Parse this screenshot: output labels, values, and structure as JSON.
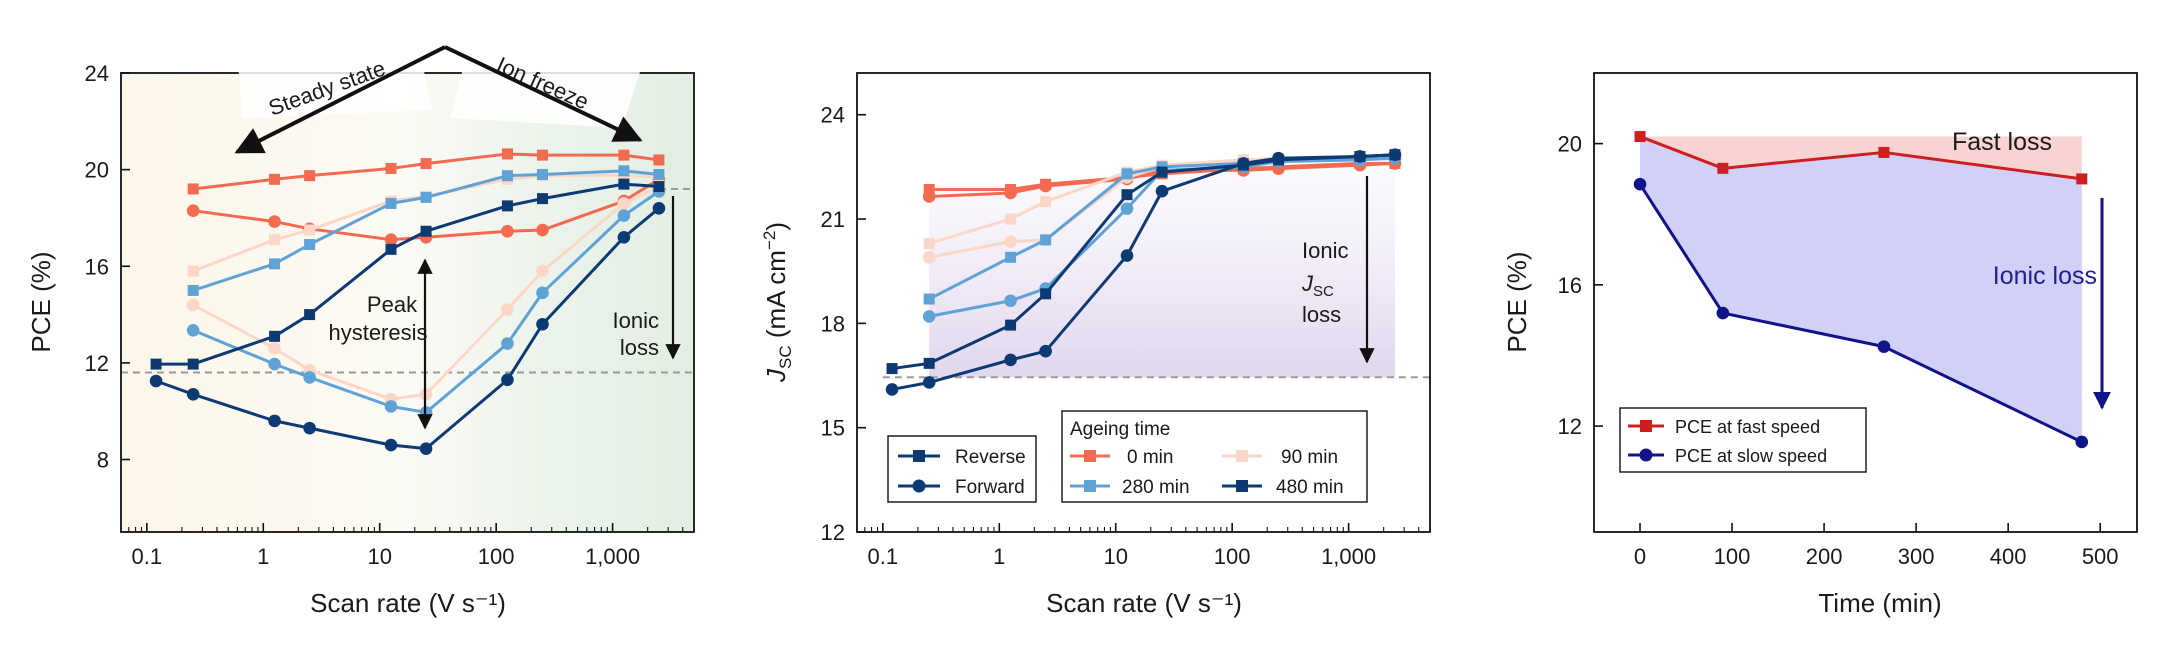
{
  "chart_data": [
    {
      "type": "line",
      "xscale": "log",
      "xlabel": "Scan rate (V s⁻¹)",
      "ylabel": "PCE (%)",
      "xlim": [
        0.06,
        5000
      ],
      "ylim": [
        5,
        24
      ],
      "xticks": [
        0.1,
        1,
        10,
        100,
        1000
      ],
      "xtick_labels": [
        "0.1",
        "1",
        "10",
        "100",
        "1,000"
      ],
      "yticks": [
        8,
        12,
        16,
        20,
        24
      ],
      "reference_line": 11.6,
      "reference_line_upper": 19.2,
      "x": [
        0.12,
        0.25,
        1.25,
        2.5,
        12.5,
        25,
        125,
        250,
        1250,
        2500
      ],
      "series": [
        {
          "color": "#f26b50",
          "marker": "square",
          "values": [
            null,
            19.2,
            19.6,
            19.75,
            20.05,
            20.25,
            20.65,
            20.6,
            20.6,
            20.4
          ]
        },
        {
          "color": "#f26b50",
          "marker": "circle",
          "values": [
            null,
            18.3,
            17.85,
            17.55,
            17.1,
            17.2,
            17.45,
            17.5,
            18.7,
            19.6
          ]
        },
        {
          "color": "#fcd6c6",
          "marker": "square",
          "values": [
            null,
            15.8,
            17.1,
            17.5,
            18.7,
            18.9,
            19.6,
            19.75,
            19.75,
            19.7
          ]
        },
        {
          "color": "#fcd6c6",
          "marker": "circle",
          "values": [
            null,
            14.4,
            12.6,
            11.7,
            10.5,
            10.7,
            14.2,
            15.8,
            18.6,
            19.3
          ]
        },
        {
          "color": "#5fa3d6",
          "marker": "square",
          "values": [
            null,
            15.0,
            16.1,
            16.9,
            18.6,
            18.85,
            19.75,
            19.8,
            19.95,
            19.8
          ]
        },
        {
          "color": "#5fa3d6",
          "marker": "circle",
          "values": [
            null,
            13.35,
            11.95,
            11.4,
            10.2,
            9.95,
            12.8,
            14.9,
            18.1,
            19.1
          ]
        },
        {
          "color": "#0e3a73",
          "marker": "square",
          "values": [
            11.95,
            11.95,
            13.1,
            14.0,
            16.7,
            17.45,
            18.5,
            18.8,
            19.4,
            19.3
          ]
        },
        {
          "color": "#0e3a73",
          "marker": "circle",
          "values": [
            11.25,
            10.7,
            9.6,
            9.3,
            8.6,
            8.45,
            11.3,
            13.6,
            17.2,
            18.4
          ]
        }
      ],
      "annotations": [
        "Steady state",
        "Ion freeze",
        "Peak",
        "hysteresis",
        "Ionic",
        "loss"
      ]
    },
    {
      "type": "line",
      "xscale": "log",
      "xlabel": "Scan rate (V s⁻¹)",
      "ylabel_main": "J",
      "ylabel_sub": "SC",
      "ylabel_unit": " (mA cm",
      "ylabel_sup": "−2",
      "ylabel_end": ")",
      "xlim": [
        0.06,
        5000
      ],
      "ylim": [
        12,
        25.2
      ],
      "xticks": [
        0.1,
        1,
        10,
        100,
        1000
      ],
      "xtick_labels": [
        "0.1",
        "1",
        "10",
        "100",
        "1,000"
      ],
      "yticks": [
        12,
        15,
        18,
        21,
        24
      ],
      "reference_line": 16.45,
      "x": [
        0.12,
        0.25,
        1.25,
        2.5,
        12.5,
        25,
        125,
        250,
        1250,
        2500
      ],
      "series": [
        {
          "color": "#f26b50",
          "marker": "square",
          "values": [
            null,
            21.85,
            21.85,
            22.0,
            22.2,
            22.3,
            22.45,
            22.5,
            22.6,
            22.6
          ]
        },
        {
          "color": "#f26b50",
          "marker": "circle",
          "values": [
            null,
            21.65,
            21.75,
            21.95,
            22.15,
            22.4,
            22.4,
            22.45,
            22.55,
            22.6
          ]
        },
        {
          "color": "#fcd6c6",
          "marker": "square",
          "values": [
            null,
            20.3,
            21.0,
            21.5,
            22.35,
            22.55,
            22.7,
            22.75,
            22.75,
            22.8
          ]
        },
        {
          "color": "#fcd6c6",
          "marker": "circle",
          "values": [
            null,
            19.9,
            20.35,
            20.4,
            22.2,
            22.5,
            22.6,
            22.7,
            22.7,
            22.8
          ]
        },
        {
          "color": "#5fa3d6",
          "marker": "square",
          "values": [
            null,
            18.7,
            19.9,
            20.4,
            22.3,
            22.5,
            22.6,
            22.7,
            22.75,
            22.8
          ]
        },
        {
          "color": "#5fa3d6",
          "marker": "circle",
          "values": [
            null,
            18.2,
            18.65,
            19.0,
            21.3,
            22.4,
            22.5,
            22.65,
            22.7,
            22.75
          ]
        },
        {
          "color": "#0e3a73",
          "marker": "square",
          "values": [
            16.7,
            16.85,
            17.95,
            18.85,
            21.7,
            22.35,
            22.55,
            22.7,
            22.8,
            22.85
          ]
        },
        {
          "color": "#0e3a73",
          "marker": "circle",
          "values": [
            16.1,
            16.3,
            16.95,
            17.2,
            19.95,
            21.8,
            22.6,
            22.75,
            22.8,
            22.85
          ]
        }
      ],
      "annotation_lines": [
        "Ionic",
        "J",
        "loss"
      ],
      "annotation_sub": "SC",
      "legend_style": [
        {
          "label": "Reverse",
          "marker": "square",
          "color": "#0e3a73"
        },
        {
          "label": "Forward",
          "marker": "circle",
          "color": "#0e3a73"
        }
      ],
      "legend_ageing": {
        "title": "Ageing time",
        "items": [
          {
            "label": "0 min",
            "color": "#f26b50"
          },
          {
            "label": "90 min",
            "color": "#fcd6c6"
          },
          {
            "label": "280 min",
            "color": "#5fa3d6"
          },
          {
            "label": "480 min",
            "color": "#0e3a73"
          }
        ]
      }
    },
    {
      "type": "line",
      "xlabel": "Time (min)",
      "ylabel": "PCE (%)",
      "xlim": [
        -50,
        540
      ],
      "ylim": [
        9,
        22
      ],
      "xticks": [
        0,
        100,
        200,
        300,
        400,
        500
      ],
      "yticks": [
        12,
        16,
        20
      ],
      "x": [
        0,
        90,
        265,
        480
      ],
      "series": [
        {
          "name": "PCE at fast speed",
          "color": "#cc1f1f",
          "marker": "square",
          "values": [
            20.2,
            19.3,
            19.75,
            19.0
          ]
        },
        {
          "name": "PCE at slow speed",
          "color": "#12128a",
          "marker": "circle",
          "values": [
            18.85,
            15.2,
            14.25,
            11.55
          ]
        }
      ],
      "annotations": [
        "Fast loss",
        "Ionic loss"
      ]
    }
  ]
}
